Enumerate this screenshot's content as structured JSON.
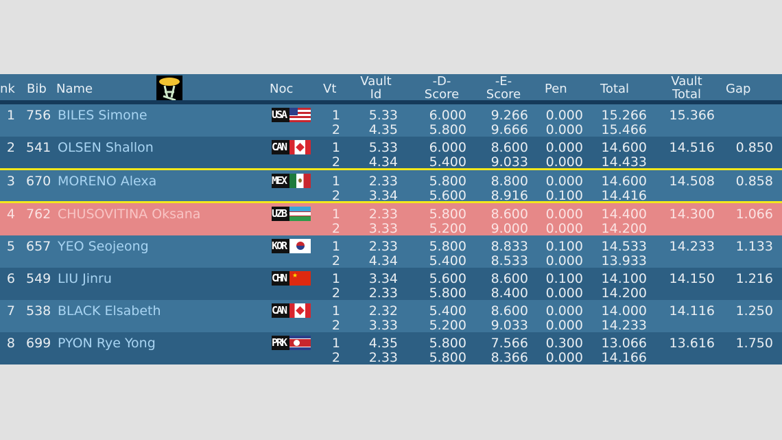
{
  "header": {
    "rank": "nk",
    "bib": "Bib",
    "name": "Name",
    "apparatus_icon": "vault-apparatus-icon",
    "noc": "Noc",
    "vt": "Vt",
    "vault_id": [
      "Vault",
      "Id"
    ],
    "d_score": [
      "-D-",
      "Score"
    ],
    "e_score": [
      "-E-",
      "Score"
    ],
    "pen": "Pen",
    "total": "Total",
    "vault_total": [
      "Vault",
      "Total"
    ],
    "gap": "Gap"
  },
  "colors": {
    "row_light": "#3d7499",
    "row_dark": "#2d5f83",
    "highlight": "#e68888",
    "qual_line": "#f2e81c",
    "name": "#a8d4f2"
  },
  "rows": [
    {
      "rank": "1",
      "bib": "756",
      "name": "BILES Simone",
      "noc": "USA",
      "v": [
        [
          "1",
          "5.33",
          "6.000",
          "9.266",
          "0.000",
          "15.266"
        ],
        [
          "2",
          "4.35",
          "5.800",
          "9.666",
          "0.000",
          "15.466"
        ]
      ],
      "vault_total": "15.366",
      "gap": ""
    },
    {
      "rank": "2",
      "bib": "541",
      "name": "OLSEN Shallon",
      "noc": "CAN",
      "v": [
        [
          "1",
          "5.33",
          "6.000",
          "8.600",
          "0.000",
          "14.600"
        ],
        [
          "2",
          "4.34",
          "5.400",
          "9.033",
          "0.000",
          "14.433"
        ]
      ],
      "vault_total": "14.516",
      "gap": "0.850"
    },
    {
      "rank": "3",
      "bib": "670",
      "name": "MORENO Alexa",
      "noc": "MEX",
      "v": [
        [
          "1",
          "2.33",
          "5.800",
          "8.800",
          "0.000",
          "14.600"
        ],
        [
          "2",
          "3.34",
          "5.600",
          "8.916",
          "0.100",
          "14.416"
        ]
      ],
      "vault_total": "14.508",
      "gap": "0.858"
    },
    {
      "rank": "4",
      "bib": "762",
      "name": "CHUSOVITINA Oksana",
      "noc": "UZB",
      "v": [
        [
          "1",
          "2.33",
          "5.800",
          "8.600",
          "0.000",
          "14.400"
        ],
        [
          "2",
          "3.33",
          "5.200",
          "9.000",
          "0.000",
          "14.200"
        ]
      ],
      "vault_total": "14.300",
      "gap": "1.066"
    },
    {
      "rank": "5",
      "bib": "657",
      "name": "YEO Seojeong",
      "noc": "KOR",
      "v": [
        [
          "1",
          "2.33",
          "5.800",
          "8.833",
          "0.100",
          "14.533"
        ],
        [
          "2",
          "4.34",
          "5.400",
          "8.533",
          "0.000",
          "13.933"
        ]
      ],
      "vault_total": "14.233",
      "gap": "1.133"
    },
    {
      "rank": "6",
      "bib": "549",
      "name": "LIU Jinru",
      "noc": "CHN",
      "v": [
        [
          "1",
          "3.34",
          "5.600",
          "8.600",
          "0.100",
          "14.100"
        ],
        [
          "2",
          "2.33",
          "5.800",
          "8.400",
          "0.000",
          "14.200"
        ]
      ],
      "vault_total": "14.150",
      "gap": "1.216"
    },
    {
      "rank": "7",
      "bib": "538",
      "name": "BLACK Elsabeth",
      "noc": "CAN",
      "v": [
        [
          "1",
          "2.32",
          "5.400",
          "8.600",
          "0.000",
          "14.000"
        ],
        [
          "2",
          "3.33",
          "5.200",
          "9.033",
          "0.000",
          "14.233"
        ]
      ],
      "vault_total": "14.116",
      "gap": "1.250"
    },
    {
      "rank": "8",
      "bib": "699",
      "name": "PYON Rye Yong",
      "noc": "PRK",
      "v": [
        [
          "1",
          "4.35",
          "5.800",
          "7.566",
          "0.300",
          "13.066"
        ],
        [
          "2",
          "2.33",
          "5.800",
          "8.366",
          "0.000",
          "14.166"
        ]
      ],
      "vault_total": "13.616",
      "gap": "1.750"
    }
  ]
}
